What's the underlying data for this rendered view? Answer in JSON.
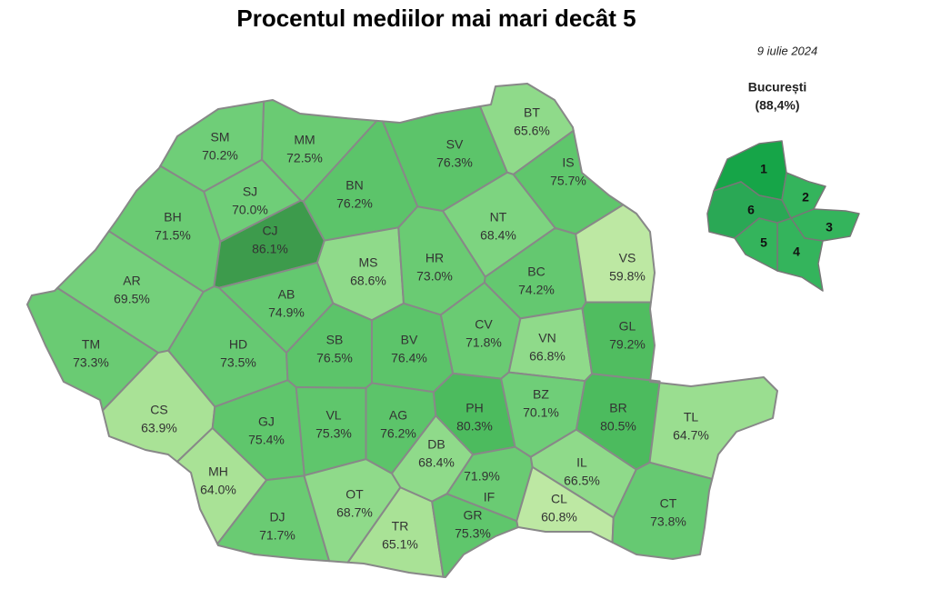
{
  "title": "Procentul mediilor mai mari decât 5",
  "date": "9 iulie 2024",
  "counties": [
    {
      "code": "SM",
      "label": "70.2%",
      "color": "#6fce78"
    },
    {
      "code": "MM",
      "label": "72.5%",
      "color": "#6acb73"
    },
    {
      "code": "BT",
      "label": "65.6%",
      "color": "#8fda8a"
    },
    {
      "code": "SV",
      "label": "76.3%",
      "color": "#5cc46a"
    },
    {
      "code": "BN",
      "label": "76.2%",
      "color": "#5cc46a"
    },
    {
      "code": "SJ",
      "label": "70.0%",
      "color": "#6fce78"
    },
    {
      "code": "IS",
      "label": "75.7%",
      "color": "#5fc66c"
    },
    {
      "code": "BH",
      "label": "71.5%",
      "color": "#6acb73"
    },
    {
      "code": "CJ",
      "label": "86.1%",
      "color": "#3d9b4c"
    },
    {
      "code": "NT",
      "label": "68.4%",
      "color": "#7dd480"
    },
    {
      "code": "AR",
      "label": "69.5%",
      "color": "#74d07b"
    },
    {
      "code": "MS",
      "label": "68.6%",
      "color": "#8fda8a"
    },
    {
      "code": "HR",
      "label": "73.0%",
      "color": "#6acb73"
    },
    {
      "code": "BC",
      "label": "74.2%",
      "color": "#64c870"
    },
    {
      "code": "VS",
      "label": "59.8%",
      "color": "#bde8a3"
    },
    {
      "code": "AB",
      "label": "74.9%",
      "color": "#64c870"
    },
    {
      "code": "CV",
      "label": "71.8%",
      "color": "#6acb73"
    },
    {
      "code": "TM",
      "label": "73.3%",
      "color": "#6acb73"
    },
    {
      "code": "HD",
      "label": "73.5%",
      "color": "#66c972"
    },
    {
      "code": "SB",
      "label": "76.5%",
      "color": "#5cc46a"
    },
    {
      "code": "BV",
      "label": "76.4%",
      "color": "#5cc46a"
    },
    {
      "code": "VN",
      "label": "66.8%",
      "color": "#8fda8a"
    },
    {
      "code": "GL",
      "label": "79.2%",
      "color": "#50bd60"
    },
    {
      "code": "CS",
      "label": "63.9%",
      "color": "#a9e296"
    },
    {
      "code": "GJ",
      "label": "75.4%",
      "color": "#5fc66c"
    },
    {
      "code": "VL",
      "label": "75.3%",
      "color": "#5fc66c"
    },
    {
      "code": "AG",
      "label": "76.2%",
      "color": "#5cc46a"
    },
    {
      "code": "PH",
      "label": "80.3%",
      "color": "#4cbb5e"
    },
    {
      "code": "BZ",
      "label": "70.1%",
      "color": "#6fce78"
    },
    {
      "code": "BR",
      "label": "80.5%",
      "color": "#4cbb5e"
    },
    {
      "code": "TL",
      "label": "64.7%",
      "color": "#9ade90"
    },
    {
      "code": "DB",
      "label": "68.4%",
      "color": "#8fda8a"
    },
    {
      "code": "MH",
      "label": "64.0%",
      "color": "#a9e296"
    },
    {
      "code": "DJ",
      "label": "71.7%",
      "color": "#6acb73"
    },
    {
      "code": "OT",
      "label": "68.7%",
      "color": "#8fda8a"
    },
    {
      "code": "TR",
      "label": "65.1%",
      "color": "#a9e296"
    },
    {
      "code": "GR",
      "label": "75.3%",
      "color": "#5fc66c"
    },
    {
      "code": "IF",
      "label": "71.9%",
      "color": "#6acb73"
    },
    {
      "code": "IL",
      "label": "66.5%",
      "color": "#8fda8a"
    },
    {
      "code": "CL",
      "label": "60.8%",
      "color": "#bde8a3"
    },
    {
      "code": "CT",
      "label": "73.8%",
      "color": "#66c972"
    }
  ],
  "bucharest": {
    "title": "București",
    "value": "(88,4%)",
    "sectors": [
      "1",
      "2",
      "3",
      "4",
      "5",
      "6"
    ]
  }
}
